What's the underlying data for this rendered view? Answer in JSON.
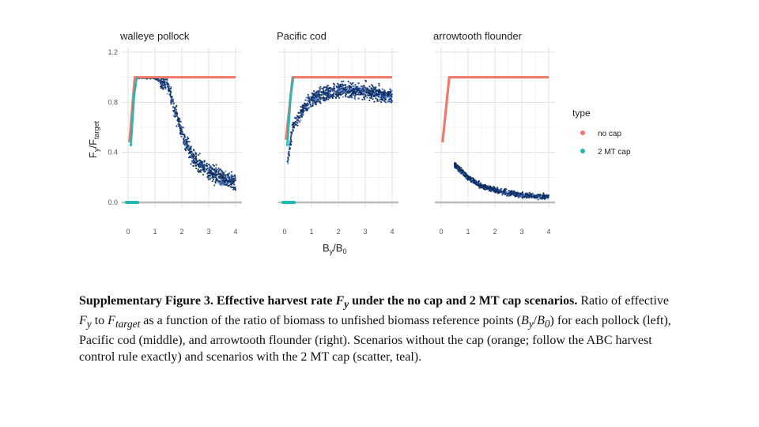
{
  "legend": {
    "title": "type",
    "items": [
      {
        "label": "no cap",
        "color": "#f07a6a"
      },
      {
        "label": "2 MT cap",
        "color": "#20b8b2"
      }
    ]
  },
  "colors": {
    "scatter_dark": "#0b2c5c",
    "scatter_mid": "#2a53a8",
    "scatter_light": "#5b8fe0",
    "floor_line": "#bbbbbb",
    "grid": "#ebebeb"
  },
  "axes": {
    "y_title_main": "F",
    "y_title_sub1": "y",
    "y_title_slash": "/F",
    "y_title_sub2": "target",
    "x_title_main": "B",
    "x_title_sub1": "y",
    "x_title_slash": "/B",
    "x_title_sub2": "0"
  },
  "chart_data": {
    "type": "scatter",
    "xlim": [
      0,
      4
    ],
    "ylim": [
      0,
      1.2
    ],
    "x_ticks": [
      "0",
      "1",
      "2",
      "3",
      "4"
    ],
    "y_ticks": [
      "0.0",
      "0.4",
      "0.8",
      "1.2"
    ],
    "grid": true,
    "legend_position": "right",
    "series_names": [
      "no cap",
      "2 MT cap"
    ],
    "panels": [
      {
        "title": "walleye pollock",
        "no_cap_curve": [
          [
            0.05,
            0.48
          ],
          [
            0.25,
            1.0
          ],
          [
            4.0,
            1.0
          ]
        ],
        "cap_points": [
          [
            0.1,
            0.45
          ],
          [
            0.2,
            0.8
          ],
          [
            0.3,
            1.0
          ],
          [
            1.0,
            1.0
          ],
          [
            1.5,
            0.92
          ],
          [
            2.0,
            0.55
          ],
          [
            2.5,
            0.33
          ],
          [
            3.0,
            0.25
          ],
          [
            3.5,
            0.2
          ],
          [
            4.0,
            0.15
          ]
        ],
        "cap_floor": [
          [
            0.0,
            0.0
          ],
          [
            0.3,
            0.0
          ]
        ]
      },
      {
        "title": "Pacific cod",
        "no_cap_curve": [
          [
            0.05,
            0.5
          ],
          [
            0.3,
            1.0
          ],
          [
            4.0,
            1.0
          ]
        ],
        "cap_points": [
          [
            0.1,
            0.3
          ],
          [
            0.3,
            0.6
          ],
          [
            0.6,
            0.72
          ],
          [
            1.0,
            0.82
          ],
          [
            1.5,
            0.87
          ],
          [
            2.0,
            0.9
          ],
          [
            3.0,
            0.89
          ],
          [
            4.0,
            0.85
          ]
        ],
        "cap_floor": [
          [
            0.0,
            0.0
          ],
          [
            0.3,
            0.0
          ]
        ]
      },
      {
        "title": "arrowtooth flounder",
        "no_cap_curve": [
          [
            0.05,
            0.48
          ],
          [
            0.3,
            1.0
          ],
          [
            4.0,
            1.0
          ]
        ],
        "cap_points": [
          [
            0.5,
            0.3
          ],
          [
            1.0,
            0.2
          ],
          [
            1.5,
            0.13
          ],
          [
            2.0,
            0.1
          ],
          [
            2.5,
            0.08
          ],
          [
            3.0,
            0.06
          ],
          [
            3.5,
            0.05
          ],
          [
            4.0,
            0.04
          ]
        ],
        "cap_floor": []
      }
    ]
  },
  "caption": {
    "title": "Supplementary Figure 3. Effective harvest rate ",
    "title_var": "F",
    "title_var_sub": "y",
    "title_rest": " under the no cap and 2 MT cap scenarios.",
    "p1": " Ratio of effective ",
    "p1_var": "F",
    "p1_var_sub": "y",
    "p2": " to ",
    "p2_var": "F",
    "p2_var_sub": "target",
    "p3": " as a function of the ratio of biomass to unfished biomass reference points (",
    "p3_var": "B",
    "p3_var_sub": "y",
    "p3_slash": "/",
    "p3_var2": "B",
    "p3_var2_sub": "0",
    "p4": ") for each pollock (left), Pacific cod (middle), and arrowtooth flounder (right). Scenarios without the cap (orange; follow the ABC harvest control rule exactly) and scenarios with the 2 MT cap (scatter, teal)."
  }
}
